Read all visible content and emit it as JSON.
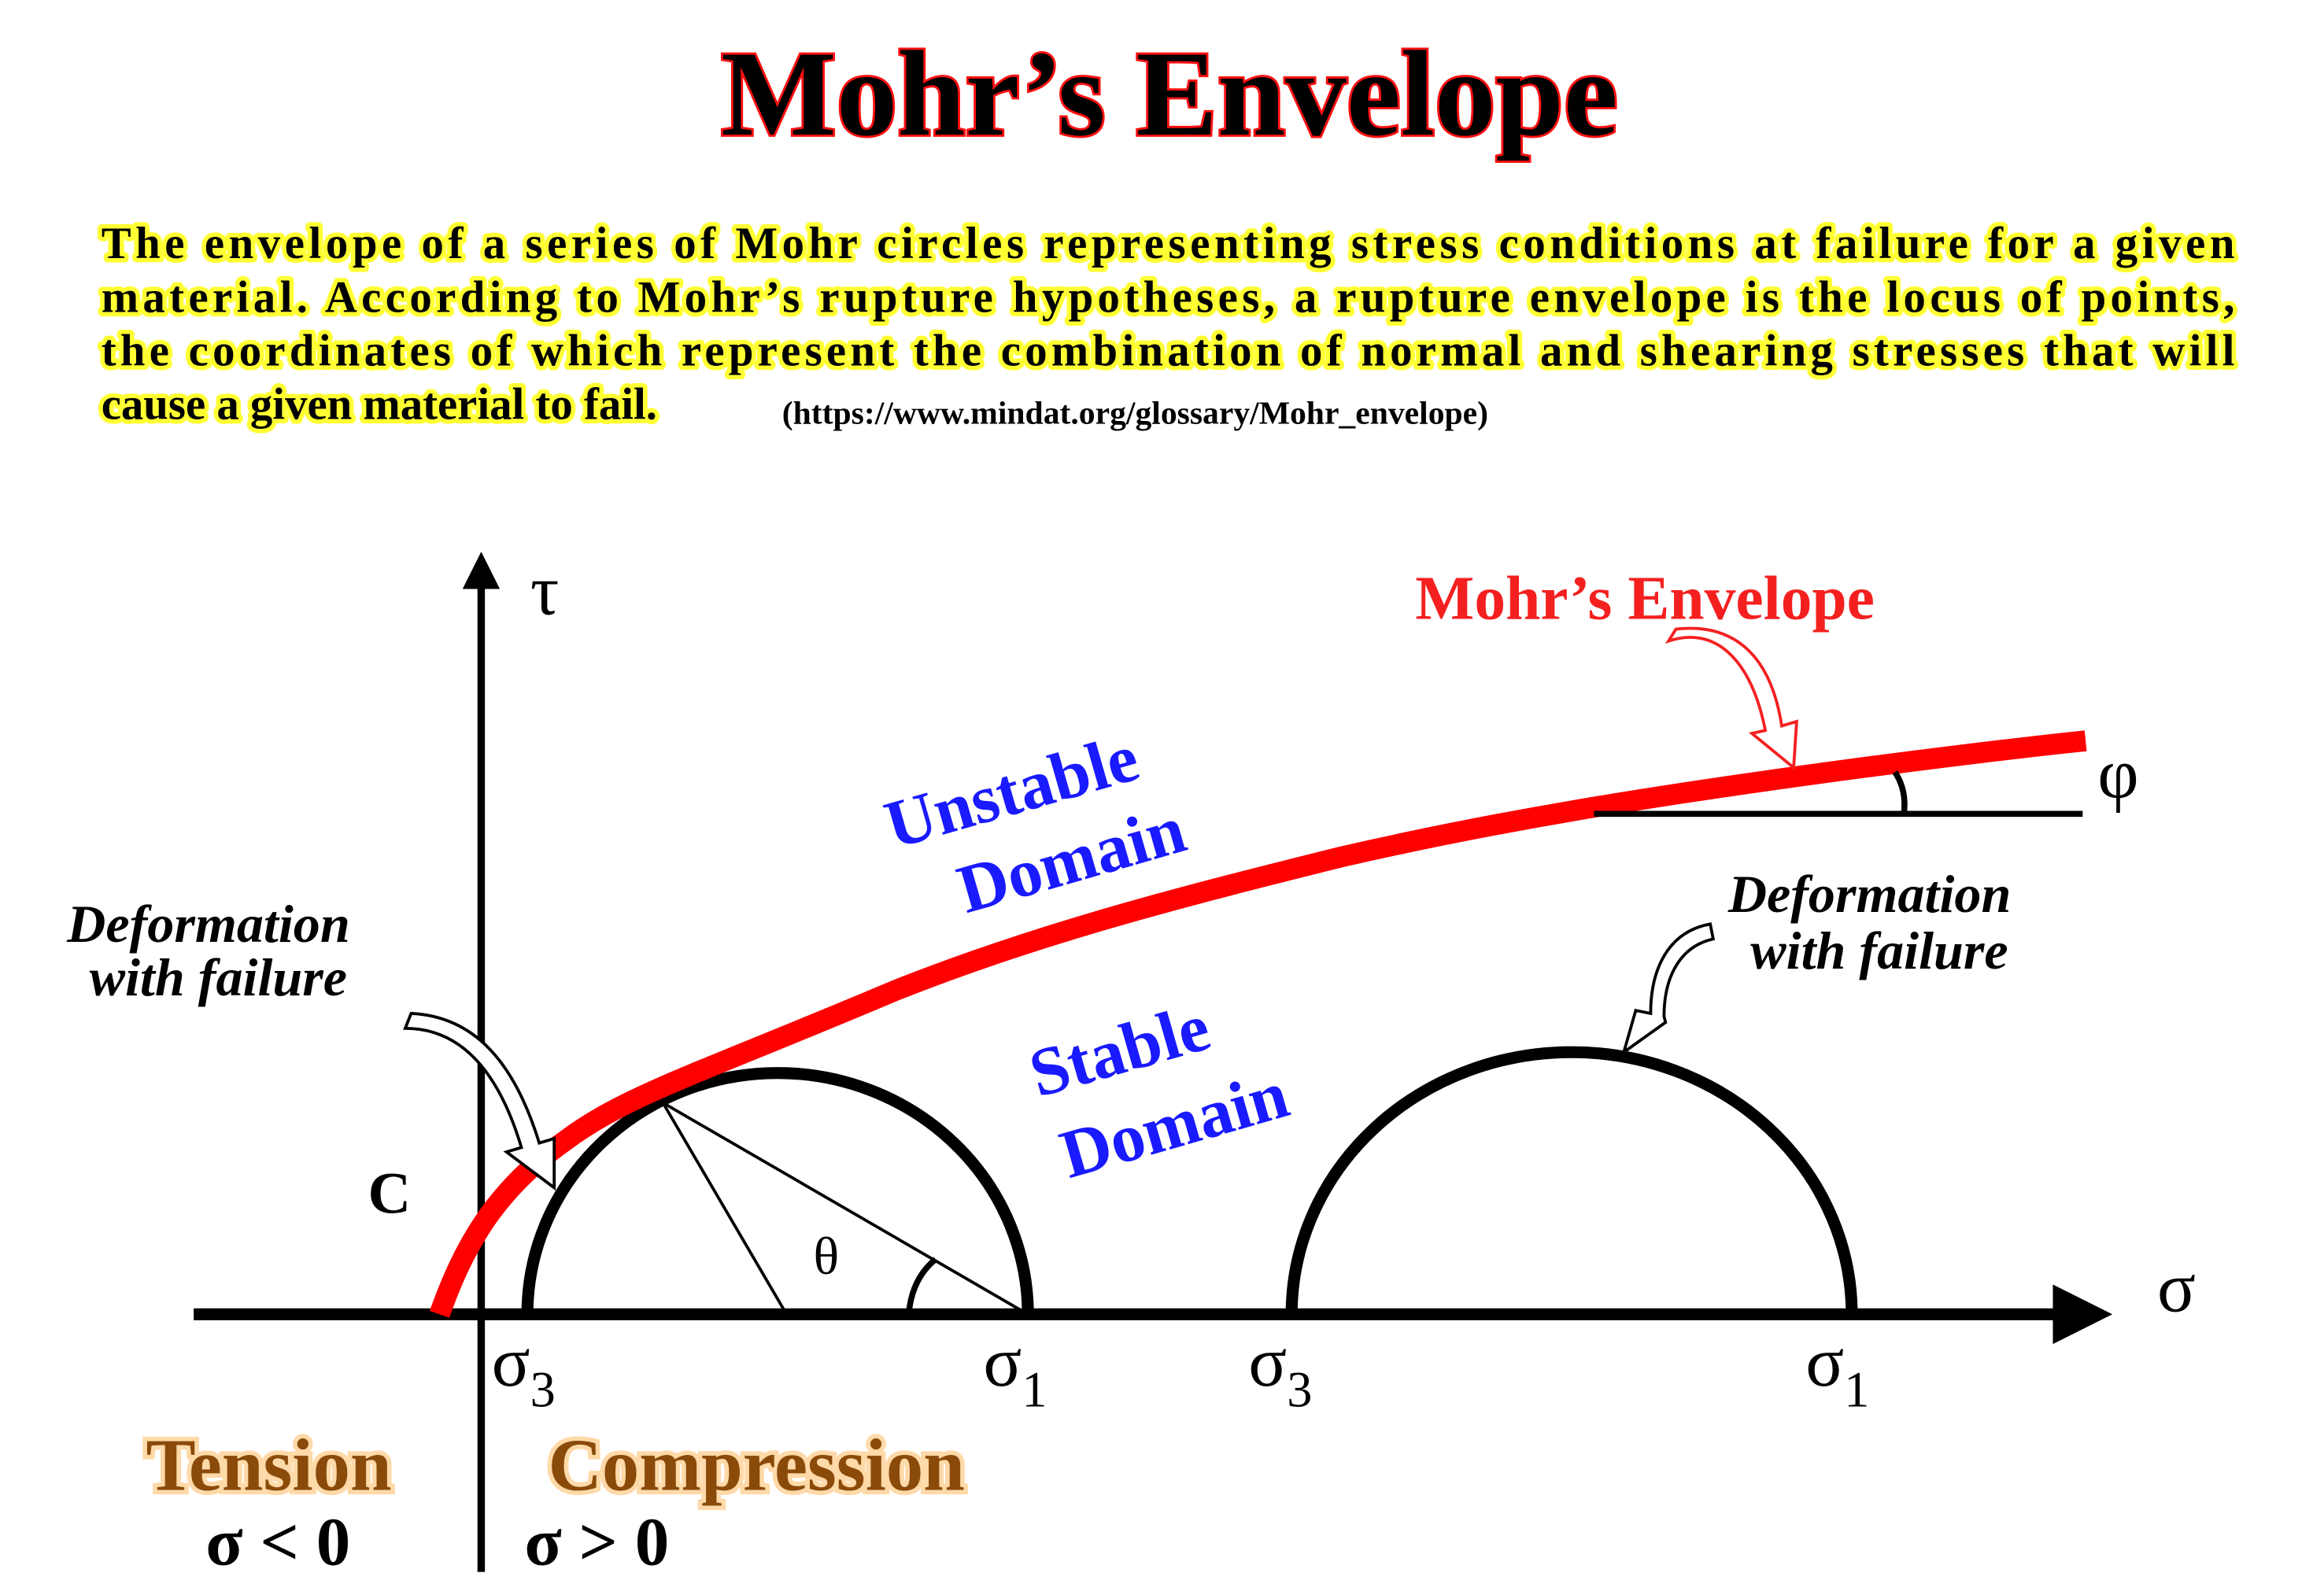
{
  "title": "Mohr’s Envelope",
  "definition": {
    "lines": [
      "The envelope of a series of Mohr circles representing stress conditions at failure for a given",
      "material. According to Mohr’s rupture hypotheses, a rupture envelope is the locus of points,",
      "the coordinates of which represent the combination of normal and shearing stresses that will",
      "cause a given material to fail."
    ],
    "source": "(https://www.mindat.org/glossary/Mohr_envelope)"
  },
  "diagram": {
    "axis_tau": "τ",
    "axis_sigma": "σ",
    "cohesion": "C",
    "angle_theta": "θ",
    "angle_phi": "φ",
    "envelope_label": "Mohr’s Envelope",
    "unstable": [
      "Unstable",
      "Domain"
    ],
    "stable": [
      "Stable",
      "Domain"
    ],
    "deformation_left": [
      "Deformation",
      "with failure"
    ],
    "deformation_right": [
      "Deformation",
      "with failure"
    ],
    "circle1": {
      "sigma3": "σ",
      "sigma3_sub": "3",
      "sigma1": "σ",
      "sigma1_sub": "1"
    },
    "circle2": {
      "sigma3": "σ",
      "sigma3_sub": "3",
      "sigma1": "σ",
      "sigma1_sub": "1"
    },
    "tension": {
      "label": "Tension",
      "condition": "σ < 0"
    },
    "compression": {
      "label": "Compression",
      "condition": "σ > 0"
    },
    "colors": {
      "envelope": "#ff0000",
      "domain_text": "#1a1aff",
      "zone_text": "#8a4a0a",
      "title_outline": "#ff1010",
      "paragraph_highlight": "#ffff33"
    }
  }
}
